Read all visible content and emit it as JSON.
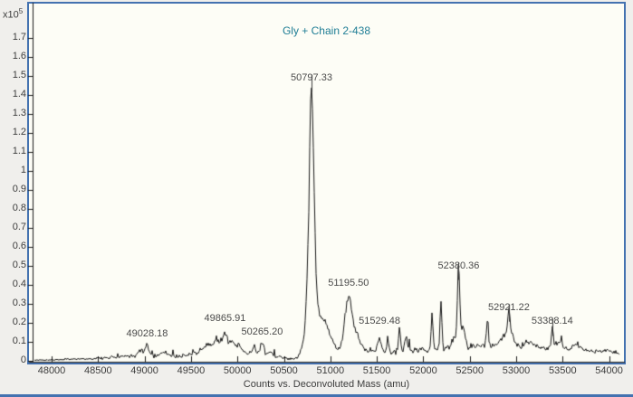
{
  "window": {
    "background": "#f0efec",
    "panel_background": "#fdfdf6",
    "frame_color": "#4472b0",
    "bottom_border_color": "#4472b0"
  },
  "chart_data": {
    "type": "line",
    "title": "Gly + Chain 2-438",
    "xlabel": "Counts vs. Deconvoluted Mass (amu)",
    "y_axis_multiplier": "x10",
    "y_axis_multiplier_exponent": "5",
    "xlim": [
      47810,
      54100
    ],
    "ylim": [
      0,
      1.75
    ],
    "x_ticks": [
      48000,
      48500,
      49000,
      49500,
      50000,
      50500,
      51000,
      51500,
      52000,
      52500,
      53000,
      53500,
      54000
    ],
    "y_ticks": [
      0,
      0.1,
      0.2,
      0.3,
      0.4,
      0.5,
      0.6,
      0.7,
      0.8,
      0.9,
      1,
      1.1,
      1.2,
      1.3,
      1.4,
      1.5,
      1.6,
      1.7
    ],
    "grid": false,
    "legend": false,
    "title_color": "#1e7d95",
    "trace_color": "#161616",
    "axis_color": "#1a1a1a",
    "axis_text_color": "#3c3c3c",
    "peak_label_color": "#4a4a4a",
    "peaks": [
      {
        "mass": 49028.18,
        "intensity": 0.09,
        "label": "49028.18",
        "marker": false
      },
      {
        "mass": 49865.91,
        "intensity": 0.17,
        "label": "49865.91",
        "marker": false
      },
      {
        "mass": 50265.2,
        "intensity": 0.1,
        "label": "50265.20",
        "marker": false
      },
      {
        "mass": 50797.33,
        "intensity": 1.44,
        "label": "50797.33",
        "marker": true
      },
      {
        "mass": 51195.5,
        "intensity": 0.355,
        "label": "51195.50",
        "marker": false
      },
      {
        "mass": 51529.48,
        "intensity": 0.155,
        "label": "51529.48",
        "marker": false
      },
      {
        "mass": 52380.36,
        "intensity": 0.45,
        "label": "52380.36",
        "marker": true
      },
      {
        "mass": 52921.22,
        "intensity": 0.23,
        "label": "52921.22",
        "marker": true
      },
      {
        "mass": 53388.14,
        "intensity": 0.155,
        "label": "53388.14",
        "marker": true
      }
    ],
    "unlabeled_peaks": [
      {
        "mass": 51745,
        "intensity": 0.2
      },
      {
        "mass": 52095,
        "intensity": 0.26
      },
      {
        "mass": 52190,
        "intensity": 0.33
      },
      {
        "mass": 52690,
        "intensity": 0.22
      }
    ],
    "profile_components": [
      [
        48300,
        0.006,
        150
      ],
      [
        48650,
        0.012,
        120
      ],
      [
        48900,
        0.022,
        120
      ],
      [
        49150,
        0.02,
        120
      ],
      [
        49420,
        0.018,
        130
      ],
      [
        49650,
        0.04,
        100
      ],
      [
        50080,
        0.035,
        120
      ],
      [
        50420,
        0.02,
        90
      ],
      [
        51100,
        0.03,
        100
      ],
      [
        51400,
        0.035,
        150
      ],
      [
        51800,
        0.04,
        220
      ],
      [
        52300,
        0.05,
        250
      ],
      [
        52750,
        0.06,
        250
      ],
      [
        53250,
        0.055,
        250
      ],
      [
        53750,
        0.04,
        200
      ],
      [
        54050,
        0.03,
        120
      ],
      [
        49028,
        0.055,
        18
      ],
      [
        48960,
        0.025,
        25
      ],
      [
        49210,
        0.02,
        30
      ],
      [
        49700,
        0.05,
        45
      ],
      [
        49790,
        0.08,
        32
      ],
      [
        49866,
        0.12,
        28
      ],
      [
        49935,
        0.07,
        28
      ],
      [
        50010,
        0.045,
        32
      ],
      [
        50180,
        0.035,
        28
      ],
      [
        50265,
        0.075,
        22
      ],
      [
        50350,
        0.025,
        25
      ],
      [
        50740,
        0.07,
        45
      ],
      [
        50797,
        1.03,
        30
      ],
      [
        50797,
        0.2,
        12
      ],
      [
        50865,
        0.21,
        85
      ],
      [
        50975,
        0.06,
        60
      ],
      [
        51190,
        0.25,
        38
      ],
      [
        51265,
        0.1,
        55
      ],
      [
        51529,
        0.075,
        18
      ],
      [
        51620,
        0.05,
        14
      ],
      [
        51745,
        0.13,
        10
      ],
      [
        51815,
        0.06,
        18
      ],
      [
        52095,
        0.19,
        10
      ],
      [
        52190,
        0.26,
        10
      ],
      [
        52340,
        0.05,
        30
      ],
      [
        52380,
        0.38,
        12
      ],
      [
        52425,
        0.1,
        22
      ],
      [
        52690,
        0.13,
        11
      ],
      [
        52870,
        0.05,
        35
      ],
      [
        52921,
        0.17,
        13
      ],
      [
        52960,
        0.06,
        25
      ],
      [
        53150,
        0.03,
        50
      ],
      [
        53388,
        0.11,
        12
      ],
      [
        53460,
        0.04,
        30
      ],
      [
        53640,
        0.03,
        50
      ]
    ],
    "noise_regions": [
      [
        47800,
        48480,
        0.004
      ],
      [
        48480,
        48820,
        0.009
      ],
      [
        48820,
        50560,
        0.014
      ],
      [
        50560,
        50700,
        0.007
      ],
      [
        50700,
        51080,
        0.01
      ],
      [
        51080,
        51560,
        0.014
      ],
      [
        51560,
        52460,
        0.02
      ],
      [
        52460,
        53700,
        0.02
      ],
      [
        53700,
        54150,
        0.014
      ]
    ],
    "noise_seed": 11
  }
}
